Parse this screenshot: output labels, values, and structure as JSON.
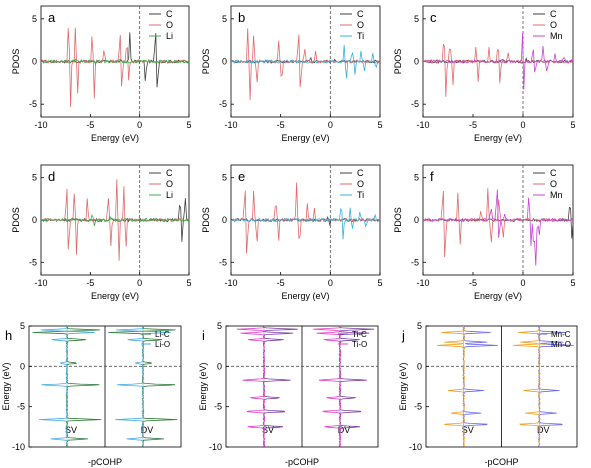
{
  "figure": {
    "pdos_xlabel": "Energy (eV)",
    "pdos_ylabel": "PDOS",
    "cohp_xlabel": "-pCOHP",
    "cohp_ylabel": "Energy (eV)",
    "sv_label": "SV",
    "dv_label": "DV"
  },
  "chart_data": [
    {
      "type": "line",
      "panel": "a",
      "xlabel": "Energy (eV)",
      "ylabel": "PDOS",
      "xlim": [
        -10,
        5
      ],
      "ylim": [
        -6.5,
        6.5
      ],
      "xticks": [
        -10,
        -5,
        0,
        5
      ],
      "yticks": [
        5,
        0,
        -5
      ],
      "fermi_line": 0,
      "series": [
        {
          "name": "C",
          "color": "#404040"
        },
        {
          "name": "O",
          "color": "#e06b6b"
        },
        {
          "name": "Li",
          "color": "#3fb04a"
        }
      ]
    },
    {
      "type": "line",
      "panel": "b",
      "xlabel": "Energy (eV)",
      "ylabel": "PDOS",
      "xlim": [
        -10,
        5
      ],
      "ylim": [
        -6.5,
        6.5
      ],
      "xticks": [
        -10,
        -5,
        0,
        5
      ],
      "yticks": [
        5,
        0,
        -5
      ],
      "fermi_line": 0,
      "series": [
        {
          "name": "C",
          "color": "#404040"
        },
        {
          "name": "O",
          "color": "#e06b6b"
        },
        {
          "name": "Ti",
          "color": "#3ab0e0"
        }
      ]
    },
    {
      "type": "line",
      "panel": "c",
      "xlabel": "Energy (eV)",
      "ylabel": "PDOS",
      "xlim": [
        -10,
        5
      ],
      "ylim": [
        -6.5,
        6.5
      ],
      "xticks": [
        -10,
        -5,
        0,
        5
      ],
      "yticks": [
        5,
        0,
        -5
      ],
      "fermi_line": 0,
      "series": [
        {
          "name": "C",
          "color": "#404040"
        },
        {
          "name": "O",
          "color": "#e06b6b"
        },
        {
          "name": "Mn",
          "color": "#c845d8"
        }
      ]
    },
    {
      "type": "line",
      "panel": "d",
      "xlabel": "Energy (eV)",
      "ylabel": "PDOS",
      "xlim": [
        -10,
        5
      ],
      "ylim": [
        -6.5,
        6.5
      ],
      "xticks": [
        -10,
        -5,
        0,
        5
      ],
      "yticks": [
        5,
        0,
        -5
      ],
      "fermi_line": 0,
      "series": [
        {
          "name": "C",
          "color": "#404040"
        },
        {
          "name": "O",
          "color": "#e06b6b"
        },
        {
          "name": "Li",
          "color": "#3fb04a"
        }
      ]
    },
    {
      "type": "line",
      "panel": "e",
      "xlabel": "Energy (eV)",
      "ylabel": "PDOS",
      "xlim": [
        -10,
        5
      ],
      "ylim": [
        -6.5,
        6.5
      ],
      "xticks": [
        -10,
        -5,
        0,
        5
      ],
      "yticks": [
        5,
        0,
        -5
      ],
      "fermi_line": 0,
      "series": [
        {
          "name": "C",
          "color": "#404040"
        },
        {
          "name": "O",
          "color": "#e06b6b"
        },
        {
          "name": "Ti",
          "color": "#3ab0e0"
        }
      ]
    },
    {
      "type": "line",
      "panel": "f",
      "xlabel": "Energy (eV)",
      "ylabel": "PDOS",
      "xlim": [
        -10,
        5
      ],
      "ylim": [
        -6.5,
        6.5
      ],
      "xticks": [
        -10,
        -5,
        0,
        5
      ],
      "yticks": [
        5,
        0,
        -5
      ],
      "fermi_line": 0,
      "series": [
        {
          "name": "C",
          "color": "#404040"
        },
        {
          "name": "O",
          "color": "#e06b6b"
        },
        {
          "name": "Mn",
          "color": "#c845d8"
        }
      ]
    },
    {
      "type": "line",
      "panel": "h",
      "xlabel": "-pCOHP",
      "ylabel": "Energy (eV)",
      "ylim": [
        -10,
        5
      ],
      "yticks": [
        5,
        0,
        -5,
        -10
      ],
      "sub_labels": [
        "SV",
        "DV"
      ],
      "series": [
        {
          "name": "Li-C",
          "color": "#2f7d3a"
        },
        {
          "name": "Li-O",
          "color": "#4aaee0"
        }
      ]
    },
    {
      "type": "line",
      "panel": "i",
      "xlabel": "-pCOHP",
      "ylabel": "Energy (eV)",
      "ylim": [
        -10,
        5
      ],
      "yticks": [
        5,
        0,
        -5,
        -10
      ],
      "sub_labels": [
        "SV",
        "DV"
      ],
      "series": [
        {
          "name": "Ti-C",
          "color": "#7a3fa0"
        },
        {
          "name": "Ti-O",
          "color": "#e040c8"
        }
      ]
    },
    {
      "type": "line",
      "panel": "j",
      "xlabel": "-pCOHP",
      "ylabel": "Energy (eV)",
      "ylim": [
        -10,
        5
      ],
      "yticks": [
        5,
        0,
        -5,
        -10
      ],
      "sub_labels": [
        "SV",
        "DV"
      ],
      "series": [
        {
          "name": "Mn-C",
          "color": "#6a6ae8"
        },
        {
          "name": "Mn-O",
          "color": "#f0a020"
        }
      ]
    }
  ]
}
